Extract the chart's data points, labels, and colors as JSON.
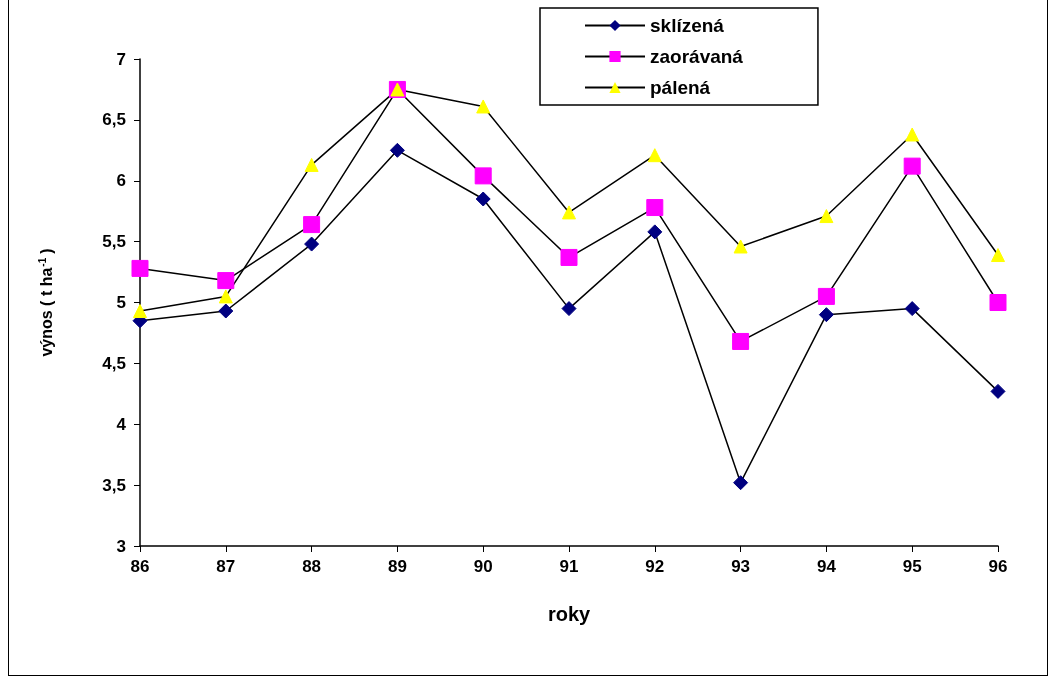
{
  "chart_data": {
    "type": "line",
    "xlabel": "roky",
    "ylabel": "výnos ( t ha$^{-1}$)",
    "categories": [
      "86",
      "87",
      "88",
      "89",
      "90",
      "91",
      "92",
      "93",
      "94",
      "95",
      "96"
    ],
    "series": [
      {
        "name": "sklízená",
        "color": "#000080",
        "marker": "diamond",
        "values": [
          4.85,
          4.93,
          5.48,
          6.25,
          5.85,
          4.95,
          5.58,
          3.52,
          4.9,
          4.95,
          4.27
        ]
      },
      {
        "name": "zaorávaná",
        "color": "#ff00ff",
        "marker": "square",
        "values": [
          5.28,
          5.18,
          5.64,
          6.75,
          6.04,
          5.37,
          5.78,
          4.68,
          5.05,
          6.12,
          5.0
        ]
      },
      {
        "name": "pálená",
        "color": "#ffff00",
        "marker": "triangle",
        "values": [
          4.93,
          5.05,
          6.13,
          6.75,
          6.61,
          5.74,
          6.21,
          5.46,
          5.71,
          6.38,
          5.39
        ]
      }
    ],
    "ylim": [
      3,
      7
    ],
    "yticks": [
      3,
      {
        "value": 3.5,
        "label": "3,5"
      },
      4,
      {
        "value": 4.5,
        "label": "4,5"
      },
      5,
      {
        "value": 5.5,
        "label": "5,5"
      },
      6,
      {
        "value": 6.5,
        "label": "6,5"
      },
      7
    ],
    "grid": false,
    "legend": "top right",
    "line_style": "solid"
  }
}
